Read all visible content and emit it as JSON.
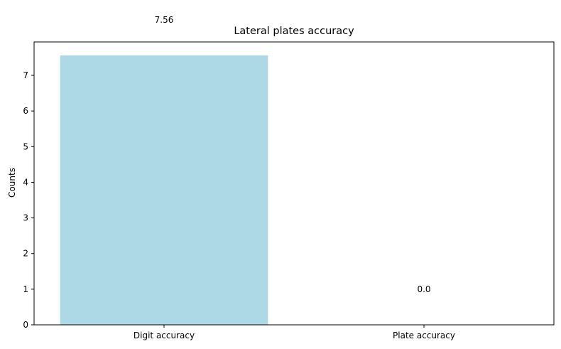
{
  "chart_data": {
    "type": "bar",
    "title": "Lateral plates accuracy",
    "xlabel": "",
    "ylabel": "Counts",
    "categories": [
      "Digit accuracy",
      "Plate accuracy"
    ],
    "values": [
      7.56,
      0.0
    ],
    "data_labels": [
      "7.56",
      "0.0"
    ],
    "ylim": [
      0,
      7.938
    ],
    "yticks": [
      0,
      1,
      2,
      3,
      4,
      5,
      6,
      7
    ],
    "bar_color": "#add8e6",
    "grid": false,
    "legend": "none"
  }
}
